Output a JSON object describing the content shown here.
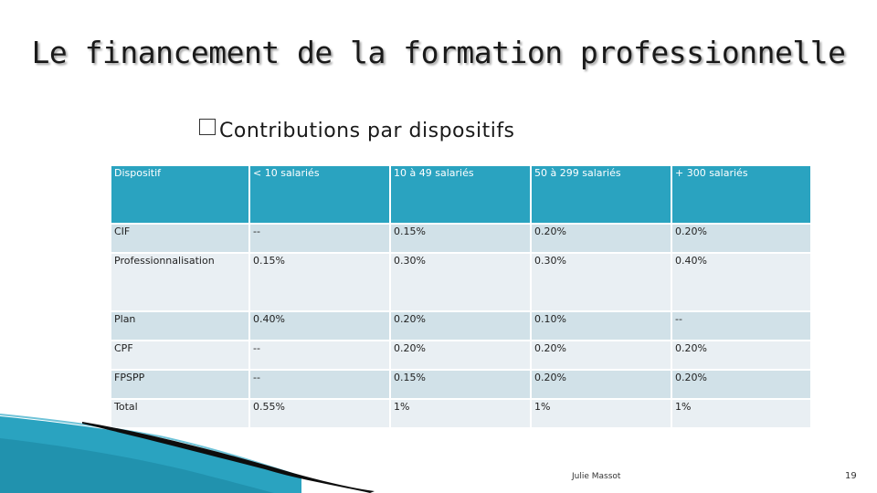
{
  "slide": {
    "title": "Le financement de la formation professionnelle",
    "subtitle_bullet": " ",
    "subtitle": "Contributions par dispositifs",
    "author": "Julie Massot",
    "page_number": "19"
  },
  "table": {
    "headers": [
      "Dispositif",
      "< 10 salariés",
      "10 à 49 salariés",
      "50 à 299 salariés",
      "+ 300 salariés"
    ],
    "rows": [
      [
        "CIF",
        "--",
        "0.15%",
        "0.20%",
        "0.20%"
      ],
      [
        "Professionnalisation",
        "0.15%",
        "0.30%",
        "0.30%",
        "0.40%"
      ],
      [
        "Plan",
        "0.40%",
        "0.20%",
        "0.10%",
        "--"
      ],
      [
        "CPF",
        "--",
        "0.20%",
        "0.20%",
        "0.20%"
      ],
      [
        "FPSPP",
        "--",
        "0.15%",
        "0.20%",
        "0.20%"
      ],
      [
        "Total",
        "0.55%",
        "1%",
        "1%",
        "1%"
      ]
    ]
  },
  "colors": {
    "header_bg": "#2aa3c0",
    "row_dark": "#d1e1e8",
    "row_light": "#e9eff3",
    "accent_wave": "#2aa3c0"
  }
}
